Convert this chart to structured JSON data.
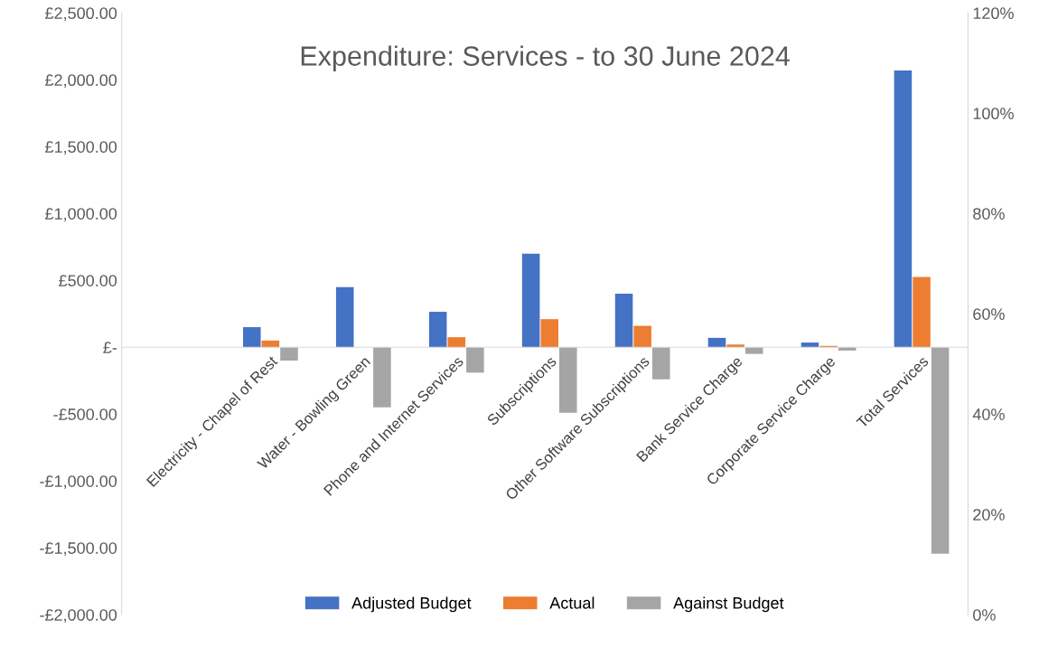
{
  "chart_data": {
    "type": "bar",
    "title": "Expenditure: Services - to 30 June 2024",
    "categories": [
      "Electricity - Chapel of Rest",
      "Water - Bowling Green",
      "Phone and Internet Services",
      "Subscriptions",
      "Other Software Subscriptions",
      "Bank Service Charge",
      "Corporate Service Charge",
      "Total Services"
    ],
    "series": [
      {
        "name": "Adjusted Budget",
        "color": "#4472c4",
        "values": [
          150,
          450,
          265,
          700,
          400,
          70,
          35,
          2070
        ]
      },
      {
        "name": "Actual",
        "color": "#ed7d31",
        "values": [
          50,
          0,
          75,
          210,
          160,
          20,
          10,
          525
        ]
      },
      {
        "name": "Against Budget",
        "color": "#a5a5a5",
        "values": [
          -100,
          -450,
          -190,
          -490,
          -240,
          -50,
          -25,
          -1545
        ]
      }
    ],
    "ylim": [
      -2000,
      2500
    ],
    "yticks": [
      {
        "value": -2000,
        "label": "-£2,000.00"
      },
      {
        "value": -1500,
        "label": "-£1,500.00"
      },
      {
        "value": -1000,
        "label": "-£1,000.00"
      },
      {
        "value": -500,
        "label": "-£500.00"
      },
      {
        "value": 0,
        "label": "£-"
      },
      {
        "value": 500,
        "label": "£500.00"
      },
      {
        "value": 1000,
        "label": "£1,000.00"
      },
      {
        "value": 1500,
        "label": "£1,500.00"
      },
      {
        "value": 2000,
        "label": "£2,000.00"
      },
      {
        "value": 2500,
        "label": "£2,500.00"
      }
    ],
    "y2lim": [
      0,
      120
    ],
    "y2ticks": [
      {
        "value": 0,
        "label": "0%"
      },
      {
        "value": 20,
        "label": "20%"
      },
      {
        "value": 40,
        "label": "40%"
      },
      {
        "value": 60,
        "label": "60%"
      },
      {
        "value": 80,
        "label": "80%"
      },
      {
        "value": 100,
        "label": "100%"
      },
      {
        "value": 120,
        "label": "120%"
      }
    ],
    "legend": "bottom"
  }
}
